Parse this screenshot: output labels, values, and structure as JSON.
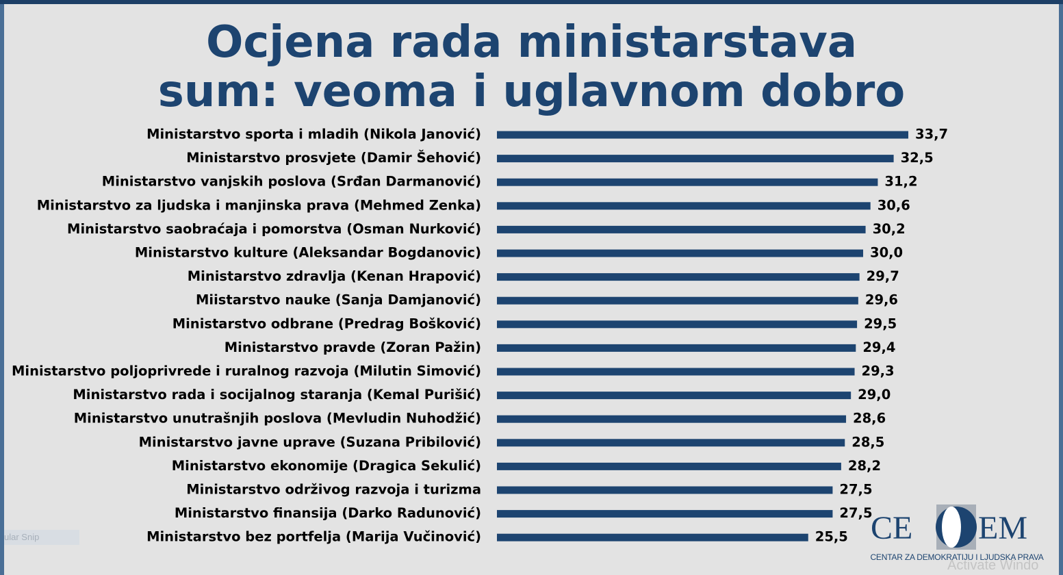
{
  "title_lines": [
    "Ocjena rada ministarstava",
    "sum: veoma i uglavnom dobro"
  ],
  "colors": {
    "bar": "#1d4470",
    "text": "#000000",
    "title": "#1d4470",
    "background": "#e3e3e3"
  },
  "chart_data": {
    "type": "bar",
    "orientation": "horizontal",
    "title": "Ocjena rada ministarstava sum: veoma i uglavnom dobro",
    "categories": [
      "Ministarstvo sporta i mladih (Nikola Janović)",
      "Ministarstvo prosvjete (Damir Šehović)",
      "Ministarstvo vanjskih poslova (Srđan Darmanović)",
      "Ministarstvo za ljudska i manjinska prava (Mehmed Zenka)",
      "Ministarstvo saobraćaja i pomorstva (Osman Nurković)",
      "Ministarstvo kulture (Aleksandar Bogdanovic)",
      "Ministarstvo zdravlja (Kenan Hrapović)",
      "Miistarstvo nauke (Sanja Damjanović)",
      "Ministarstvo odbrane (Predrag Bošković)",
      "Ministarstvo pravde (Zoran Pažin)",
      "Ministarstvo poljoprivrede i ruralnog razvoja (Milutin Simović)",
      "Ministarstvo rada i socijalnog staranja (Kemal Purišić)",
      "Ministarstvo unutrašnjih poslova (Mevludin Nuhodžić)",
      "Ministarstvo javne uprave (Suzana Pribilović)",
      "Ministarstvo ekonomije (Dragica Sekulić)",
      "Ministarstvo održivog razvoja i turizma",
      "Ministarstvo finansija (Darko Radunović)",
      "Ministarstvo bez portfelja (Marija Vučinović)"
    ],
    "values": [
      33.7,
      32.5,
      31.2,
      30.6,
      30.2,
      30.0,
      29.7,
      29.6,
      29.5,
      29.4,
      29.3,
      29.0,
      28.6,
      28.5,
      28.2,
      27.5,
      27.5,
      25.5
    ],
    "value_labels": [
      "33,7",
      "32,5",
      "31,2",
      "30,6",
      "30,2",
      "30,0",
      "29,7",
      "29,6",
      "29,5",
      "29,4",
      "29,3",
      "29,0",
      "28,6",
      "28,5",
      "28,2",
      "27,5",
      "27,5",
      "25,5"
    ],
    "xlim": [
      0,
      33.7
    ],
    "grid": false,
    "legend": "none"
  },
  "logo": {
    "text_left": "CE",
    "text_right": "EM",
    "subtitle": "CENTAR ZA DEMOKRATIJU I LJUDSKA PRAVA"
  },
  "overlays": {
    "snip_label": "ular Snip",
    "watermark": "Activate Windo"
  }
}
